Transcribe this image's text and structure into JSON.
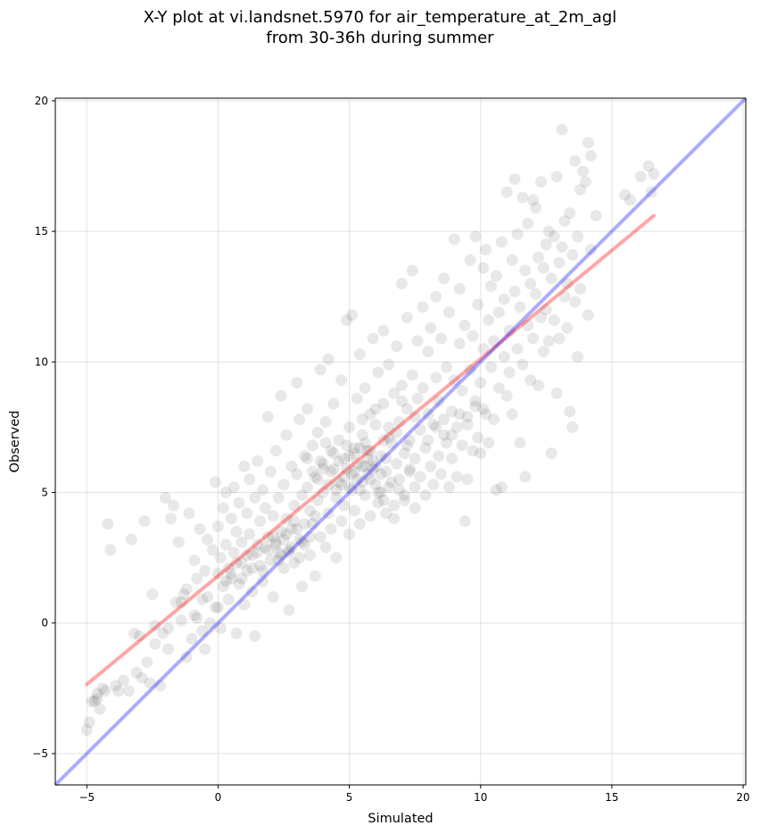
{
  "title_line1": "X-Y plot at vi.landsnet.5970 for air_temperature_at_2m_agl",
  "title_line2": "from 30-36h during summer",
  "chart_data": {
    "type": "scatter",
    "xlabel": "Simulated",
    "ylabel": "Observed",
    "xlim": [
      -6.2,
      20.1
    ],
    "ylim": [
      -6.2,
      20.1
    ],
    "xticks": [
      -5,
      0,
      5,
      10,
      15,
      20
    ],
    "yticks": [
      -5,
      0,
      5,
      10,
      15,
      20
    ],
    "grid": true,
    "point_color": "#000000",
    "point_alpha": 0.09,
    "regression_line": {
      "color": "#ff0000",
      "x": [
        -5.0,
        16.6
      ],
      "y": [
        -2.35,
        15.6
      ]
    },
    "one_to_one_line": {
      "color": "#0000ff",
      "x": [
        -6.2,
        20.1
      ],
      "y": [
        -6.2,
        20.1
      ]
    },
    "points": [
      [
        -5.0,
        -4.1
      ],
      [
        -4.9,
        -3.8
      ],
      [
        -4.7,
        -3.0
      ],
      [
        -4.6,
        -2.7
      ],
      [
        -4.5,
        -3.3
      ],
      [
        -4.3,
        -2.6
      ],
      [
        -4.2,
        3.8
      ],
      [
        -4.1,
        2.8
      ],
      [
        -3.9,
        -2.4
      ],
      [
        -3.6,
        -2.2
      ],
      [
        -3.4,
        -2.6
      ],
      [
        -3.3,
        3.2
      ],
      [
        -3.1,
        -1.9
      ],
      [
        -3.0,
        -0.5
      ],
      [
        -2.8,
        3.9
      ],
      [
        -2.6,
        -2.3
      ],
      [
        -2.5,
        1.1
      ],
      [
        -2.4,
        -0.8
      ],
      [
        -2.2,
        -2.4
      ],
      [
        -2.1,
        -0.4
      ],
      [
        -2.0,
        4.8
      ],
      [
        -1.9,
        -1.0
      ],
      [
        -1.8,
        4.0
      ],
      [
        -1.7,
        4.5
      ],
      [
        -1.5,
        3.1
      ],
      [
        -1.4,
        0.8
      ],
      [
        -1.3,
        1.1
      ],
      [
        -1.2,
        -1.3
      ],
      [
        -1.1,
        4.2
      ],
      [
        -1.0,
        -0.6
      ],
      [
        -0.9,
        2.4
      ],
      [
        -0.9,
        0.3
      ],
      [
        -0.8,
        1.7
      ],
      [
        -0.7,
        3.6
      ],
      [
        -0.6,
        0.9
      ],
      [
        -0.5,
        -1.0
      ],
      [
        -0.5,
        2.0
      ],
      [
        -0.4,
        3.2
      ],
      [
        -0.3,
        0.0
      ],
      [
        -0.2,
        2.8
      ],
      [
        -0.1,
        0.6
      ],
      [
        -0.1,
        5.4
      ],
      [
        0.0,
        1.9
      ],
      [
        0.0,
        3.7
      ],
      [
        0.1,
        2.5
      ],
      [
        0.1,
        -0.2
      ],
      [
        0.2,
        4.4
      ],
      [
        0.2,
        1.4
      ],
      [
        0.3,
        3.0
      ],
      [
        0.3,
        5.0
      ],
      [
        0.4,
        2.1
      ],
      [
        0.4,
        0.9
      ],
      [
        0.5,
        4.0
      ],
      [
        0.5,
        1.7
      ],
      [
        0.6,
        2.7
      ],
      [
        0.6,
        5.2
      ],
      [
        0.7,
        3.5
      ],
      [
        0.7,
        -0.4
      ],
      [
        0.8,
        1.5
      ],
      [
        0.8,
        4.6
      ],
      [
        0.9,
        2.3
      ],
      [
        0.9,
        3.1
      ],
      [
        1.0,
        6.0
      ],
      [
        1.0,
        0.7
      ],
      [
        1.1,
        4.2
      ],
      [
        1.1,
        2.0
      ],
      [
        1.2,
        3.4
      ],
      [
        1.2,
        5.5
      ],
      [
        1.3,
        1.2
      ],
      [
        1.3,
        2.6
      ],
      [
        1.4,
        4.8
      ],
      [
        1.4,
        -0.5
      ],
      [
        1.5,
        3.0
      ],
      [
        1.5,
        6.2
      ],
      [
        1.6,
        2.2
      ],
      [
        1.6,
        3.9
      ],
      [
        1.7,
        5.1
      ],
      [
        1.7,
        1.6
      ],
      [
        1.8,
        2.9
      ],
      [
        1.8,
        4.4
      ],
      [
        1.9,
        7.9
      ],
      [
        1.9,
        3.3
      ],
      [
        2.0,
        2.4
      ],
      [
        2.0,
        5.8
      ],
      [
        2.1,
        1.0
      ],
      [
        2.1,
        4.1
      ],
      [
        2.2,
        3.1
      ],
      [
        2.2,
        6.6
      ],
      [
        2.3,
        2.7
      ],
      [
        2.3,
        4.8
      ],
      [
        2.4,
        8.7
      ],
      [
        2.4,
        3.5
      ],
      [
        2.5,
        2.1
      ],
      [
        2.5,
        5.3
      ],
      [
        2.6,
        4.0
      ],
      [
        2.6,
        7.2
      ],
      [
        2.7,
        2.8
      ],
      [
        2.7,
        0.5
      ],
      [
        2.8,
        3.6
      ],
      [
        2.8,
        6.0
      ],
      [
        2.9,
        4.5
      ],
      [
        2.9,
        2.3
      ],
      [
        3.0,
        5.7
      ],
      [
        3.0,
        9.2
      ],
      [
        3.1,
        3.2
      ],
      [
        3.1,
        7.8
      ],
      [
        3.2,
        4.9
      ],
      [
        3.2,
        1.4
      ],
      [
        3.3,
        6.4
      ],
      [
        3.3,
        3.0
      ],
      [
        3.4,
        5.2
      ],
      [
        3.4,
        8.2
      ],
      [
        3.5,
        2.6
      ],
      [
        3.5,
        4.3
      ],
      [
        3.6,
        6.8
      ],
      [
        3.6,
        3.8
      ],
      [
        3.7,
        5.6
      ],
      [
        3.7,
        1.8
      ],
      [
        3.8,
        7.3
      ],
      [
        3.8,
        4.7
      ],
      [
        3.9,
        3.3
      ],
      [
        3.9,
        9.7
      ],
      [
        4.0,
        6.1
      ],
      [
        4.0,
        5.0
      ],
      [
        4.1,
        2.9
      ],
      [
        4.1,
        7.7
      ],
      [
        4.2,
        4.2
      ],
      [
        4.2,
        10.1
      ],
      [
        4.3,
        5.8
      ],
      [
        4.3,
        3.6
      ],
      [
        4.4,
        6.5
      ],
      [
        4.4,
        8.4
      ],
      [
        4.5,
        4.8
      ],
      [
        4.5,
        2.5
      ],
      [
        4.6,
        7.0
      ],
      [
        4.6,
        5.4
      ],
      [
        4.7,
        3.9
      ],
      [
        4.7,
        9.3
      ],
      [
        4.8,
        6.3
      ],
      [
        4.8,
        4.5
      ],
      [
        4.9,
        11.6
      ],
      [
        4.9,
        5.9
      ],
      [
        5.0,
        3.4
      ],
      [
        5.0,
        7.5
      ],
      [
        5.1,
        5.1
      ],
      [
        5.1,
        11.8
      ],
      [
        5.2,
        6.7
      ],
      [
        5.2,
        4.3
      ],
      [
        5.3,
        8.6
      ],
      [
        5.3,
        5.5
      ],
      [
        5.4,
        3.8
      ],
      [
        5.4,
        10.3
      ],
      [
        5.5,
        6.0
      ],
      [
        5.5,
        7.2
      ],
      [
        5.6,
        4.9
      ],
      [
        5.6,
        9.0
      ],
      [
        5.7,
        5.7
      ],
      [
        5.7,
        6.6
      ],
      [
        5.8,
        4.1
      ],
      [
        5.8,
        8.0
      ],
      [
        5.9,
        6.2
      ],
      [
        5.9,
        10.9
      ],
      [
        6.0,
        5.3
      ],
      [
        6.0,
        7.6
      ],
      [
        6.1,
        4.6
      ],
      [
        6.1,
        9.6
      ],
      [
        6.2,
        6.4
      ],
      [
        6.2,
        5.0
      ],
      [
        6.3,
        8.4
      ],
      [
        6.3,
        11.2
      ],
      [
        6.4,
        5.8
      ],
      [
        6.4,
        4.2
      ],
      [
        6.5,
        7.1
      ],
      [
        6.5,
        9.9
      ],
      [
        6.6,
        5.4
      ],
      [
        6.6,
        6.9
      ],
      [
        6.7,
        8.8
      ],
      [
        6.7,
        4.0
      ],
      [
        6.8,
        6.1
      ],
      [
        6.8,
        10.6
      ],
      [
        6.9,
        7.7
      ],
      [
        6.9,
        5.1
      ],
      [
        7.0,
        13.0
      ],
      [
        7.0,
        9.1
      ],
      [
        7.1,
        6.5
      ],
      [
        7.1,
        4.7
      ],
      [
        7.2,
        8.2
      ],
      [
        7.2,
        11.7
      ],
      [
        7.3,
        5.9
      ],
      [
        7.3,
        7.0
      ],
      [
        7.4,
        13.5
      ],
      [
        7.4,
        9.5
      ],
      [
        7.5,
        6.3
      ],
      [
        7.5,
        4.4
      ],
      [
        7.6,
        8.6
      ],
      [
        7.6,
        10.8
      ],
      [
        7.7,
        5.6
      ],
      [
        7.7,
        7.4
      ],
      [
        7.8,
        12.1
      ],
      [
        7.8,
        9.0
      ],
      [
        7.9,
        6.7
      ],
      [
        7.9,
        4.9
      ],
      [
        8.0,
        8.0
      ],
      [
        8.0,
        10.4
      ],
      [
        8.1,
        6.0
      ],
      [
        8.1,
        11.3
      ],
      [
        8.2,
        7.6
      ],
      [
        8.2,
        5.3
      ],
      [
        8.3,
        9.4
      ],
      [
        8.3,
        12.5
      ],
      [
        8.4,
        6.4
      ],
      [
        8.4,
        8.5
      ],
      [
        8.5,
        5.7
      ],
      [
        8.5,
        10.9
      ],
      [
        8.6,
        7.2
      ],
      [
        8.6,
        13.2
      ],
      [
        8.7,
        6.9
      ],
      [
        8.7,
        9.8
      ],
      [
        8.8,
        5.2
      ],
      [
        8.8,
        11.9
      ],
      [
        8.9,
        8.1
      ],
      [
        8.9,
        6.3
      ],
      [
        9.0,
        14.7
      ],
      [
        9.0,
        9.3
      ],
      [
        9.1,
        7.5
      ],
      [
        9.1,
        5.6
      ],
      [
        9.2,
        10.7
      ],
      [
        9.2,
        12.8
      ],
      [
        9.3,
        6.8
      ],
      [
        9.3,
        8.9
      ],
      [
        9.4,
        3.9
      ],
      [
        9.4,
        11.4
      ],
      [
        9.5,
        7.9
      ],
      [
        9.5,
        5.5
      ],
      [
        9.6,
        9.7
      ],
      [
        9.6,
        13.9
      ],
      [
        9.7,
        6.6
      ],
      [
        9.7,
        11.0
      ],
      [
        9.8,
        8.3
      ],
      [
        9.8,
        14.8
      ],
      [
        9.9,
        7.1
      ],
      [
        9.9,
        12.2
      ],
      [
        10.0,
        9.2
      ],
      [
        10.0,
        6.5
      ],
      [
        10.1,
        10.5
      ],
      [
        10.1,
        13.6
      ],
      [
        10.2,
        8.0
      ],
      [
        10.2,
        14.3
      ],
      [
        10.3,
        11.6
      ],
      [
        10.3,
        6.9
      ],
      [
        10.4,
        9.8
      ],
      [
        10.4,
        12.9
      ],
      [
        10.5,
        7.8
      ],
      [
        10.5,
        10.8
      ],
      [
        10.6,
        5.1
      ],
      [
        10.6,
        13.3
      ],
      [
        10.7,
        9.0
      ],
      [
        10.7,
        11.9
      ],
      [
        10.8,
        5.2
      ],
      [
        10.8,
        14.6
      ],
      [
        10.9,
        10.2
      ],
      [
        10.9,
        12.4
      ],
      [
        11.0,
        8.7
      ],
      [
        11.0,
        16.5
      ],
      [
        11.1,
        11.2
      ],
      [
        11.1,
        9.6
      ],
      [
        11.2,
        13.9
      ],
      [
        11.2,
        8.0
      ],
      [
        11.3,
        12.7
      ],
      [
        11.3,
        17.0
      ],
      [
        11.4,
        10.5
      ],
      [
        11.4,
        14.9
      ],
      [
        11.5,
        6.9
      ],
      [
        11.5,
        12.1
      ],
      [
        11.6,
        9.9
      ],
      [
        11.6,
        16.3
      ],
      [
        11.7,
        13.5
      ],
      [
        11.7,
        5.6
      ],
      [
        11.8,
        11.4
      ],
      [
        11.8,
        15.3
      ],
      [
        11.9,
        9.3
      ],
      [
        11.9,
        13.0
      ],
      [
        12.0,
        16.2
      ],
      [
        12.0,
        10.9
      ],
      [
        12.1,
        12.6
      ],
      [
        12.1,
        15.9
      ],
      [
        12.2,
        9.1
      ],
      [
        12.2,
        14.0
      ],
      [
        12.3,
        11.7
      ],
      [
        12.3,
        16.9
      ],
      [
        12.4,
        10.4
      ],
      [
        12.4,
        13.6
      ],
      [
        12.5,
        14.5
      ],
      [
        12.5,
        12.0
      ],
      [
        12.6,
        10.8
      ],
      [
        12.6,
        15.0
      ],
      [
        12.7,
        13.2
      ],
      [
        12.7,
        6.5
      ],
      [
        12.8,
        14.8
      ],
      [
        12.8,
        11.6
      ],
      [
        12.9,
        17.1
      ],
      [
        12.9,
        8.8
      ],
      [
        13.0,
        13.8
      ],
      [
        13.0,
        10.9
      ],
      [
        13.1,
        14.4
      ],
      [
        13.1,
        18.9
      ],
      [
        13.2,
        12.5
      ],
      [
        13.2,
        15.4
      ],
      [
        13.3,
        11.3
      ],
      [
        13.3,
        13.0
      ],
      [
        13.4,
        15.7
      ],
      [
        13.4,
        8.1
      ],
      [
        13.5,
        14.1
      ],
      [
        13.5,
        7.5
      ],
      [
        13.6,
        12.3
      ],
      [
        13.6,
        17.7
      ],
      [
        13.7,
        14.8
      ],
      [
        13.7,
        10.2
      ],
      [
        13.8,
        16.6
      ],
      [
        13.8,
        12.8
      ],
      [
        13.9,
        17.3
      ],
      [
        14.0,
        16.9
      ],
      [
        14.1,
        11.8
      ],
      [
        14.1,
        18.4
      ],
      [
        14.2,
        17.9
      ],
      [
        14.2,
        14.3
      ],
      [
        14.4,
        15.6
      ],
      [
        15.5,
        16.4
      ],
      [
        15.7,
        16.2
      ],
      [
        16.1,
        17.1
      ],
      [
        16.4,
        17.5
      ],
      [
        16.5,
        16.5
      ],
      [
        16.6,
        17.2
      ],
      [
        4.4,
        5.9
      ],
      [
        4.6,
        6.2
      ],
      [
        4.8,
        5.6
      ],
      [
        5.0,
        6.4
      ],
      [
        5.2,
        5.8
      ],
      [
        5.4,
        6.7
      ],
      [
        5.6,
        6.0
      ],
      [
        5.8,
        5.5
      ],
      [
        5.0,
        5.2
      ],
      [
        5.1,
        5.7
      ],
      [
        5.3,
        6.1
      ],
      [
        5.5,
        5.4
      ],
      [
        5.7,
        6.3
      ],
      [
        5.9,
        5.9
      ],
      [
        4.9,
        6.8
      ],
      [
        4.7,
        5.3
      ],
      [
        5.2,
        6.5
      ],
      [
        5.4,
        5.1
      ],
      [
        5.6,
        6.9
      ],
      [
        5.8,
        6.6
      ],
      [
        6.0,
        6.0
      ],
      [
        6.2,
        5.7
      ],
      [
        6.4,
        6.3
      ],
      [
        4.5,
        5.1
      ],
      [
        2.2,
        3.0
      ],
      [
        2.4,
        2.6
      ],
      [
        2.6,
        3.4
      ],
      [
        2.8,
        2.9
      ],
      [
        3.0,
        3.6
      ],
      [
        3.2,
        3.1
      ],
      [
        2.5,
        3.2
      ],
      [
        2.7,
        2.7
      ],
      [
        1.9,
        2.8
      ],
      [
        2.1,
        3.3
      ],
      [
        2.3,
        2.4
      ],
      [
        2.9,
        3.9
      ],
      [
        3.1,
        2.5
      ],
      [
        3.3,
        3.8
      ],
      [
        3.5,
        3.3
      ],
      [
        3.7,
        4.1
      ],
      [
        5.5,
        7.8
      ],
      [
        6.0,
        8.2
      ],
      [
        6.5,
        7.5
      ],
      [
        7.0,
        8.5
      ],
      [
        7.5,
        7.9
      ],
      [
        6.3,
        7.0
      ],
      [
        6.8,
        7.3
      ],
      [
        7.2,
        6.8
      ],
      [
        3.8,
        5.5
      ],
      [
        4.0,
        5.9
      ],
      [
        4.2,
        5.3
      ],
      [
        4.3,
        6.6
      ],
      [
        4.1,
        6.9
      ],
      [
        3.9,
        6.2
      ],
      [
        3.6,
        5.8
      ],
      [
        3.4,
        6.3
      ],
      [
        6.1,
        5.0
      ],
      [
        6.3,
        4.7
      ],
      [
        6.5,
        5.2
      ],
      [
        6.7,
        4.5
      ],
      [
        6.9,
        5.5
      ],
      [
        7.1,
        4.9
      ],
      [
        7.3,
        5.8
      ],
      [
        7.5,
        5.2
      ],
      [
        8.0,
        7.0
      ],
      [
        8.3,
        7.5
      ],
      [
        8.6,
        7.8
      ],
      [
        8.9,
        7.2
      ],
      [
        9.2,
        8.0
      ],
      [
        9.5,
        7.6
      ],
      [
        9.8,
        8.5
      ],
      [
        10.1,
        8.2
      ],
      [
        0.5,
        1.9
      ],
      [
        0.7,
        2.3
      ],
      [
        0.9,
        1.7
      ],
      [
        1.1,
        2.6
      ],
      [
        1.3,
        2.1
      ],
      [
        1.5,
        2.7
      ],
      [
        1.7,
        2.0
      ],
      [
        0.3,
        1.6
      ],
      [
        -1.6,
        0.8
      ],
      [
        -1.2,
        1.3
      ],
      [
        -0.8,
        0.2
      ],
      [
        -0.4,
        1.0
      ],
      [
        0.0,
        0.6
      ],
      [
        -2.4,
        -0.1
      ],
      [
        -3.2,
        -0.4
      ],
      [
        -3.8,
        -2.6
      ],
      [
        -4.8,
        -3.0
      ],
      [
        -4.6,
        -2.9
      ],
      [
        -4.4,
        -2.5
      ],
      [
        -2.9,
        -2.1
      ],
      [
        -1.9,
        -0.2
      ],
      [
        -0.6,
        -0.3
      ],
      [
        -1.4,
        0.1
      ],
      [
        -2.7,
        -1.5
      ]
    ]
  }
}
